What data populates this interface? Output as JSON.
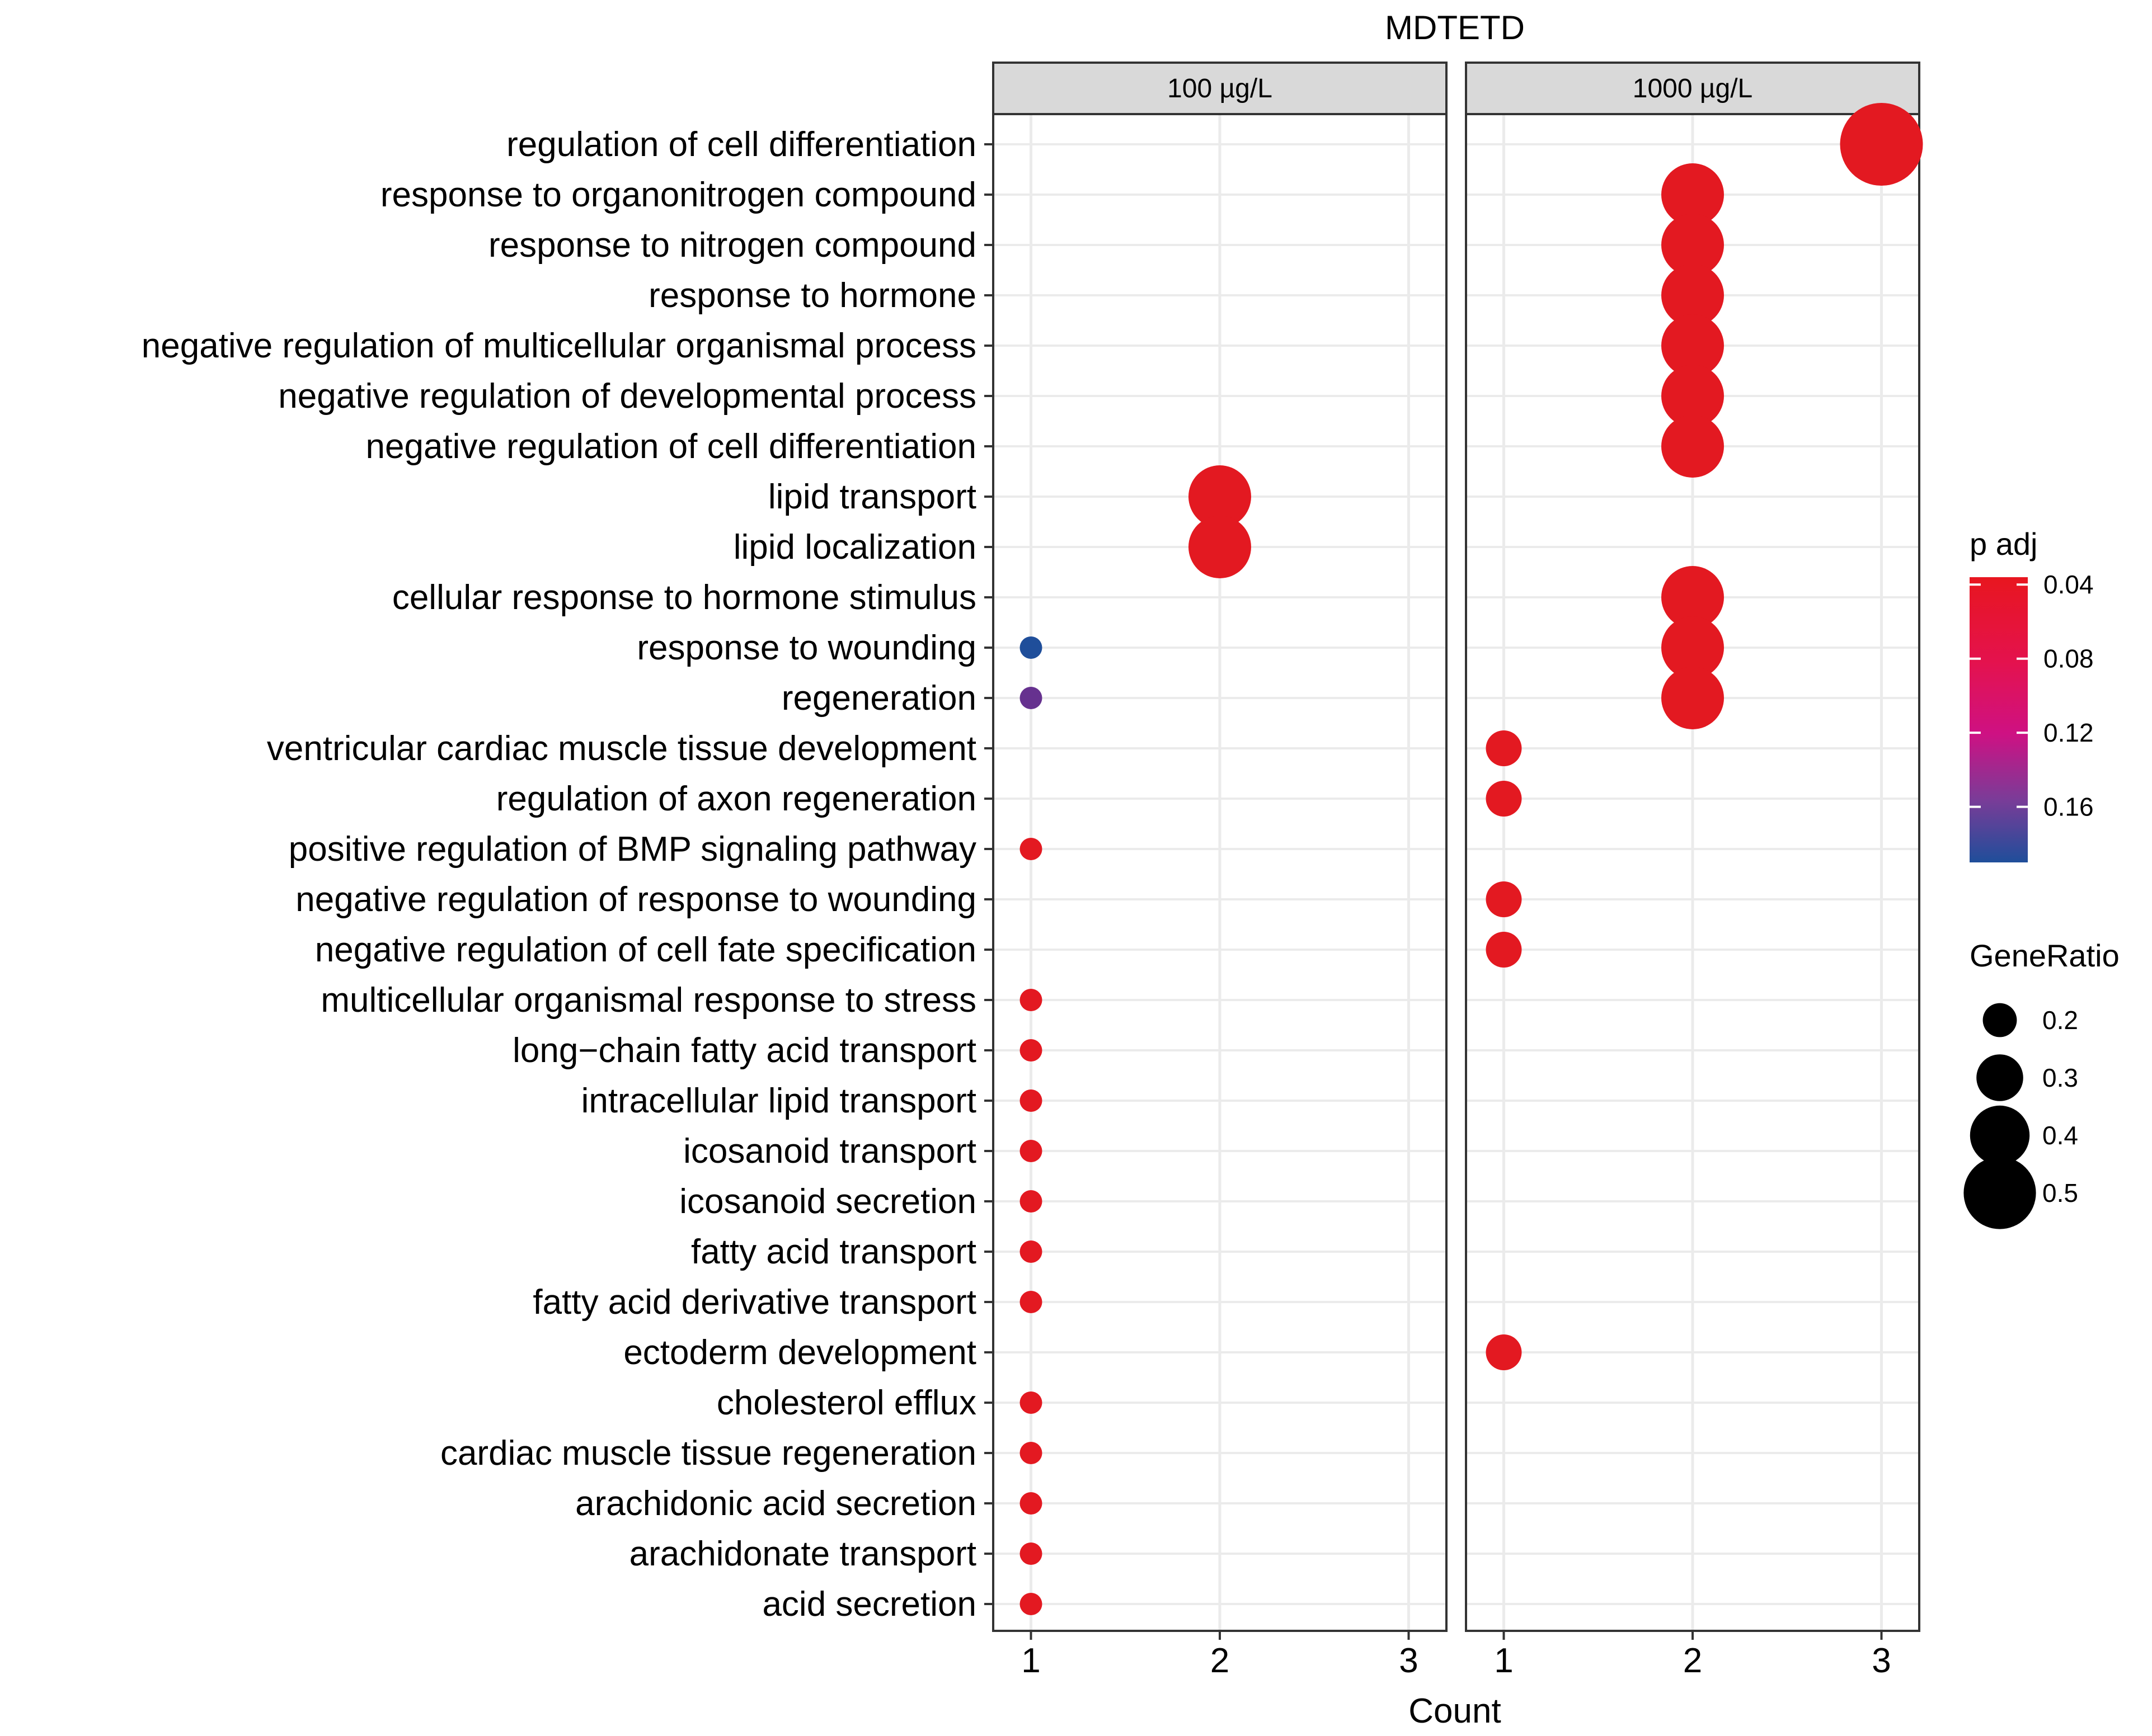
{
  "chart_data": {
    "type": "scatter",
    "title": "MDTETD",
    "xlabel": "Count",
    "ylabel": "",
    "xlim": [
      0.8,
      3.2
    ],
    "xticks": [
      "1",
      "2",
      "3"
    ],
    "panels": [
      {
        "label": "100 µg/L"
      },
      {
        "label": "1000 µg/L"
      }
    ],
    "categories": [
      "regulation of cell differentiation",
      "response to organonitrogen compound",
      "response to nitrogen compound",
      "response to hormone",
      "negative regulation of multicellular organismal process",
      "negative regulation of developmental process",
      "negative regulation of cell differentiation",
      "lipid transport",
      "lipid localization",
      "cellular response to hormone stimulus",
      "response to wounding",
      "regeneration",
      "ventricular cardiac muscle tissue development",
      "regulation of axon regeneration",
      "positive regulation of BMP signaling pathway",
      "negative regulation of response to wounding",
      "negative regulation of cell fate specification",
      "multicellular organismal response to stress",
      "long−chain fatty acid transport",
      "intracellular lipid transport",
      "icosanoid transport",
      "icosanoid secretion",
      "fatty acid transport",
      "fatty acid derivative transport",
      "ectoderm development",
      "cholesterol efflux",
      "cardiac muscle tissue regeneration",
      "arachidonic acid secretion",
      "arachidonate transport",
      "acid secretion"
    ],
    "points": [
      {
        "panel": 0,
        "category": "lipid transport",
        "count": 2,
        "gene_ratio": 0.4,
        "p_adj": 0.04
      },
      {
        "panel": 0,
        "category": "lipid localization",
        "count": 2,
        "gene_ratio": 0.4,
        "p_adj": 0.04
      },
      {
        "panel": 0,
        "category": "response to wounding",
        "count": 1,
        "gene_ratio": 0.1,
        "p_adj": 0.19
      },
      {
        "panel": 0,
        "category": "regeneration",
        "count": 1,
        "gene_ratio": 0.1,
        "p_adj": 0.16
      },
      {
        "panel": 0,
        "category": "positive regulation of BMP signaling pathway",
        "count": 1,
        "gene_ratio": 0.1,
        "p_adj": 0.04
      },
      {
        "panel": 0,
        "category": "multicellular organismal response to stress",
        "count": 1,
        "gene_ratio": 0.1,
        "p_adj": 0.04
      },
      {
        "panel": 0,
        "category": "long−chain fatty acid transport",
        "count": 1,
        "gene_ratio": 0.1,
        "p_adj": 0.04
      },
      {
        "panel": 0,
        "category": "intracellular lipid transport",
        "count": 1,
        "gene_ratio": 0.1,
        "p_adj": 0.04
      },
      {
        "panel": 0,
        "category": "icosanoid transport",
        "count": 1,
        "gene_ratio": 0.1,
        "p_adj": 0.04
      },
      {
        "panel": 0,
        "category": "icosanoid secretion",
        "count": 1,
        "gene_ratio": 0.1,
        "p_adj": 0.04
      },
      {
        "panel": 0,
        "category": "fatty acid transport",
        "count": 1,
        "gene_ratio": 0.1,
        "p_adj": 0.04
      },
      {
        "panel": 0,
        "category": "fatty acid derivative transport",
        "count": 1,
        "gene_ratio": 0.1,
        "p_adj": 0.04
      },
      {
        "panel": 0,
        "category": "cholesterol efflux",
        "count": 1,
        "gene_ratio": 0.1,
        "p_adj": 0.04
      },
      {
        "panel": 0,
        "category": "cardiac muscle tissue regeneration",
        "count": 1,
        "gene_ratio": 0.1,
        "p_adj": 0.04
      },
      {
        "panel": 0,
        "category": "arachidonic acid secretion",
        "count": 1,
        "gene_ratio": 0.1,
        "p_adj": 0.04
      },
      {
        "panel": 0,
        "category": "arachidonate transport",
        "count": 1,
        "gene_ratio": 0.1,
        "p_adj": 0.04
      },
      {
        "panel": 0,
        "category": "acid secretion",
        "count": 1,
        "gene_ratio": 0.1,
        "p_adj": 0.04
      },
      {
        "panel": 1,
        "category": "regulation of cell differentiation",
        "count": 3,
        "gene_ratio": 0.55,
        "p_adj": 0.04
      },
      {
        "panel": 1,
        "category": "response to organonitrogen compound",
        "count": 2,
        "gene_ratio": 0.4,
        "p_adj": 0.04
      },
      {
        "panel": 1,
        "category": "response to nitrogen compound",
        "count": 2,
        "gene_ratio": 0.4,
        "p_adj": 0.04
      },
      {
        "panel": 1,
        "category": "response to hormone",
        "count": 2,
        "gene_ratio": 0.4,
        "p_adj": 0.04
      },
      {
        "panel": 1,
        "category": "negative regulation of multicellular organismal process",
        "count": 2,
        "gene_ratio": 0.4,
        "p_adj": 0.04
      },
      {
        "panel": 1,
        "category": "negative regulation of developmental process",
        "count": 2,
        "gene_ratio": 0.4,
        "p_adj": 0.04
      },
      {
        "panel": 1,
        "category": "negative regulation of cell differentiation",
        "count": 2,
        "gene_ratio": 0.4,
        "p_adj": 0.04
      },
      {
        "panel": 1,
        "category": "cellular response to hormone stimulus",
        "count": 2,
        "gene_ratio": 0.4,
        "p_adj": 0.04
      },
      {
        "panel": 1,
        "category": "response to wounding",
        "count": 2,
        "gene_ratio": 0.4,
        "p_adj": 0.04
      },
      {
        "panel": 1,
        "category": "regeneration",
        "count": 2,
        "gene_ratio": 0.4,
        "p_adj": 0.04
      },
      {
        "panel": 1,
        "category": "ventricular cardiac muscle tissue development",
        "count": 1,
        "gene_ratio": 0.2,
        "p_adj": 0.04
      },
      {
        "panel": 1,
        "category": "regulation of axon regeneration",
        "count": 1,
        "gene_ratio": 0.2,
        "p_adj": 0.04
      },
      {
        "panel": 1,
        "category": "negative regulation of response to wounding",
        "count": 1,
        "gene_ratio": 0.2,
        "p_adj": 0.04
      },
      {
        "panel": 1,
        "category": "negative regulation of cell fate specification",
        "count": 1,
        "gene_ratio": 0.2,
        "p_adj": 0.04
      },
      {
        "panel": 1,
        "category": "ectoderm development",
        "count": 1,
        "gene_ratio": 0.2,
        "p_adj": 0.04
      }
    ],
    "color_legend": {
      "title": "p adj",
      "ticks": [
        "0.04",
        "0.08",
        "0.12",
        "0.16"
      ],
      "tick_values": [
        0.04,
        0.08,
        0.12,
        0.16
      ],
      "range": [
        0.036,
        0.19
      ],
      "colors": {
        "low": "#E41A1C",
        "mid": "#D6047F",
        "high": "#1F4E9A"
      }
    },
    "size_legend": {
      "title": "GeneRatio",
      "entries": [
        {
          "label": "0.2",
          "value": 0.2
        },
        {
          "label": "0.3",
          "value": 0.3
        },
        {
          "label": "0.4",
          "value": 0.4
        },
        {
          "label": "0.5",
          "value": 0.5
        }
      ]
    }
  }
}
